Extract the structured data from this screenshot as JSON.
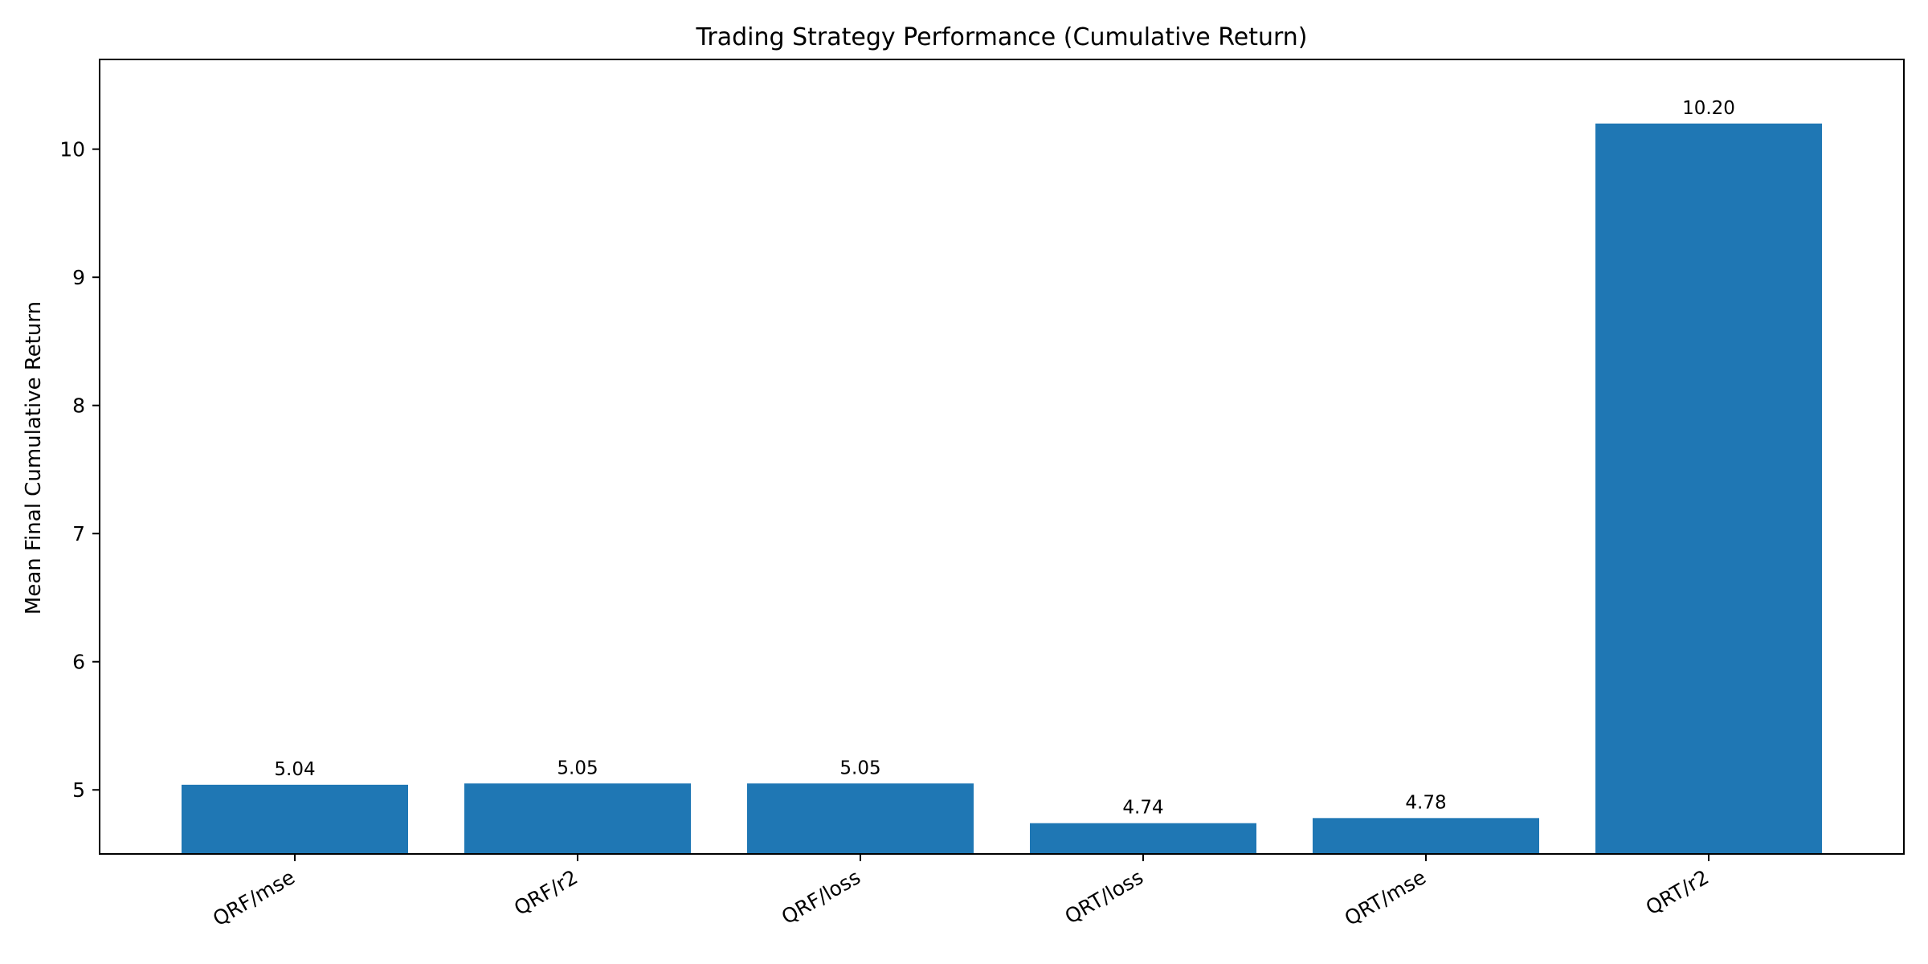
{
  "chart_data": {
    "type": "bar",
    "title": "Trading Strategy Performance (Cumulative Return)",
    "xlabel": "",
    "ylabel": "Mean Final Cumulative Return",
    "categories": [
      "QRF/mse",
      "QRF/r2",
      "QRF/loss",
      "QRT/loss",
      "QRT/mse",
      "QRT/r2"
    ],
    "values": [
      5.04,
      5.05,
      5.05,
      4.74,
      4.78,
      10.2
    ],
    "data_labels": [
      "5.04",
      "5.05",
      "5.05",
      "4.74",
      "4.78",
      "10.20"
    ],
    "ylim": [
      4.5,
      10.7
    ],
    "yticks": [
      5,
      6,
      7,
      8,
      9,
      10
    ],
    "grid": false,
    "legend": "none",
    "bar_color": "#1f77b4",
    "xtick_rotation": "30deg"
  }
}
